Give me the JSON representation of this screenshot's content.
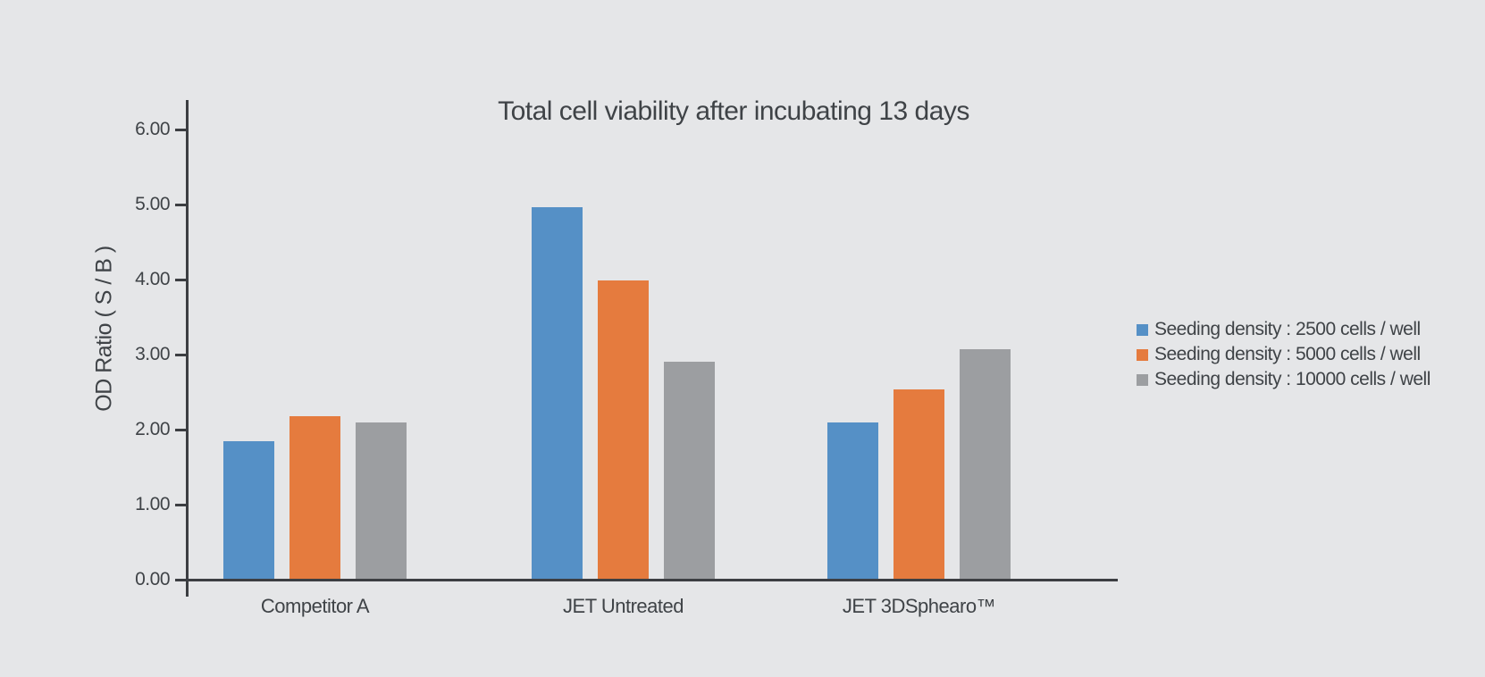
{
  "colors": {
    "background": "#e5e6e8",
    "axis": "#3c3e42",
    "text": "#3f4347",
    "series_blue": "#5590c6",
    "series_orange": "#e57b3e",
    "series_gray": "#9c9ea1"
  },
  "chart_data": {
    "type": "bar",
    "title": "Total cell viability after incubating 13 days",
    "xlabel": "",
    "ylabel": "OD Ratio ( S / B )",
    "categories": [
      "Competitor A",
      "JET Untreated",
      "JET 3DSphearo™"
    ],
    "series": [
      {
        "name": "Seeding density : 2500 cells / well",
        "color": "#5590c6",
        "values": [
          1.83,
          4.95,
          2.08
        ]
      },
      {
        "name": "Seeding density : 5000 cells / well",
        "color": "#e57b3e",
        "values": [
          2.17,
          3.98,
          2.52
        ]
      },
      {
        "name": "Seeding density : 10000 cells / well",
        "color": "#9c9ea1",
        "values": [
          2.08,
          2.89,
          3.06
        ]
      }
    ],
    "ylim": [
      0,
      6
    ],
    "ytick_step": 1,
    "ytick_labels": [
      "0.00",
      "1.00",
      "2.00",
      "3.00",
      "4.00",
      "5.00",
      "6.00"
    ],
    "grid": false,
    "legend_position": "right"
  }
}
